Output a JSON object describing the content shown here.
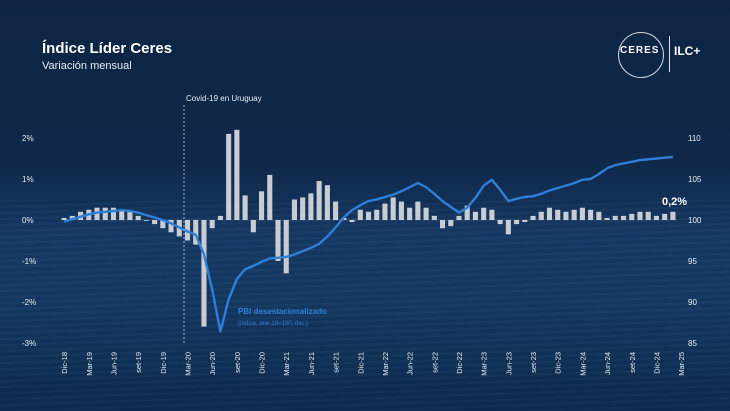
{
  "header": {
    "title": "Índice Líder Ceres",
    "subtitle": "Variación mensual"
  },
  "logo": {
    "ceres": "CERES",
    "ilc": "ILC+"
  },
  "colors": {
    "bar": "#c9ccd2",
    "line": "#2f7fd8",
    "text": "#e8edf3"
  },
  "chart_data": {
    "type": "bar",
    "left_axis": {
      "ticks": [
        "2%",
        "1%",
        "0%",
        "-1%",
        "-2%",
        "-3%"
      ],
      "range": [
        -3,
        2.5
      ]
    },
    "right_axis": {
      "ticks": [
        "110",
        "105",
        "100",
        "95",
        "90",
        "85"
      ],
      "range": [
        85,
        115
      ]
    },
    "x_tick_labels": [
      "Dic-18",
      "Mar-19",
      "Jun-19",
      "set-19",
      "Dic-19",
      "Mar-20",
      "Jun-20",
      "set-20",
      "Dic-20",
      "Mar-21",
      "Jun-21",
      "set-21",
      "Dic-21",
      "Mar-22",
      "Jun-22",
      "set-22",
      "Dic-22",
      "Mar-23",
      "Jun-23",
      "set-23",
      "Dic-23",
      "Mar-24",
      "Jun-24",
      "set-24",
      "Dic-24",
      "Mar-25"
    ],
    "series": [
      {
        "type": "bar",
        "axis": "left",
        "values": [
          0.05,
          0.1,
          0.2,
          0.25,
          0.3,
          0.3,
          0.3,
          0.25,
          0.2,
          0.1,
          0.0,
          -0.1,
          -0.2,
          -0.3,
          -0.4,
          -0.5,
          -0.6,
          -2.6,
          -0.2,
          0.1,
          2.1,
          2.2,
          0.6,
          -0.3,
          0.7,
          1.1,
          -1.0,
          -1.3,
          0.5,
          0.55,
          0.65,
          0.95,
          0.85,
          0.45,
          0.05,
          -0.05,
          0.25,
          0.2,
          0.25,
          0.4,
          0.55,
          0.45,
          0.3,
          0.45,
          0.3,
          0.1,
          -0.2,
          -0.15,
          0.1,
          0.35,
          0.2,
          0.3,
          0.25,
          -0.1,
          -0.35,
          -0.1,
          -0.05,
          0.1,
          0.2,
          0.3,
          0.25,
          0.2,
          0.25,
          0.3,
          0.25,
          0.2,
          0.05,
          0.1,
          0.1,
          0.15,
          0.2,
          0.2,
          0.1,
          0.15,
          0.2
        ]
      },
      {
        "type": "line",
        "name": "PBI desestacionalizado",
        "note": "(índice, ene-19=100, dsc.)",
        "axis": "right",
        "values": [
          99.8,
          100.1,
          100.4,
          100.7,
          100.9,
          101.0,
          101.1,
          101.2,
          101.1,
          100.9,
          100.6,
          100.3,
          100.0,
          99.6,
          99.1,
          98.6,
          98.2,
          95.8,
          91.5,
          86.4,
          90.3,
          92.8,
          94.0,
          94.4,
          94.9,
          95.3,
          95.4,
          95.5,
          95.8,
          96.2,
          96.6,
          97.1,
          98.0,
          99.1,
          100.3,
          101.2,
          101.8,
          102.3,
          102.5,
          102.8,
          103.1,
          103.5,
          104.0,
          104.5,
          104.0,
          103.2,
          102.3,
          101.6,
          100.9,
          101.5,
          102.7,
          104.2,
          104.9,
          103.7,
          102.3,
          102.6,
          102.8,
          102.9,
          103.2,
          103.6,
          103.9,
          104.2,
          104.5,
          104.9,
          105.0,
          105.6,
          106.3,
          106.7,
          106.9,
          107.1,
          107.3,
          107.4,
          107.5,
          107.6,
          107.7
        ]
      }
    ],
    "annotations": {
      "event": "Covid-19 en Uruguay",
      "last_value": "0,2%"
    }
  }
}
